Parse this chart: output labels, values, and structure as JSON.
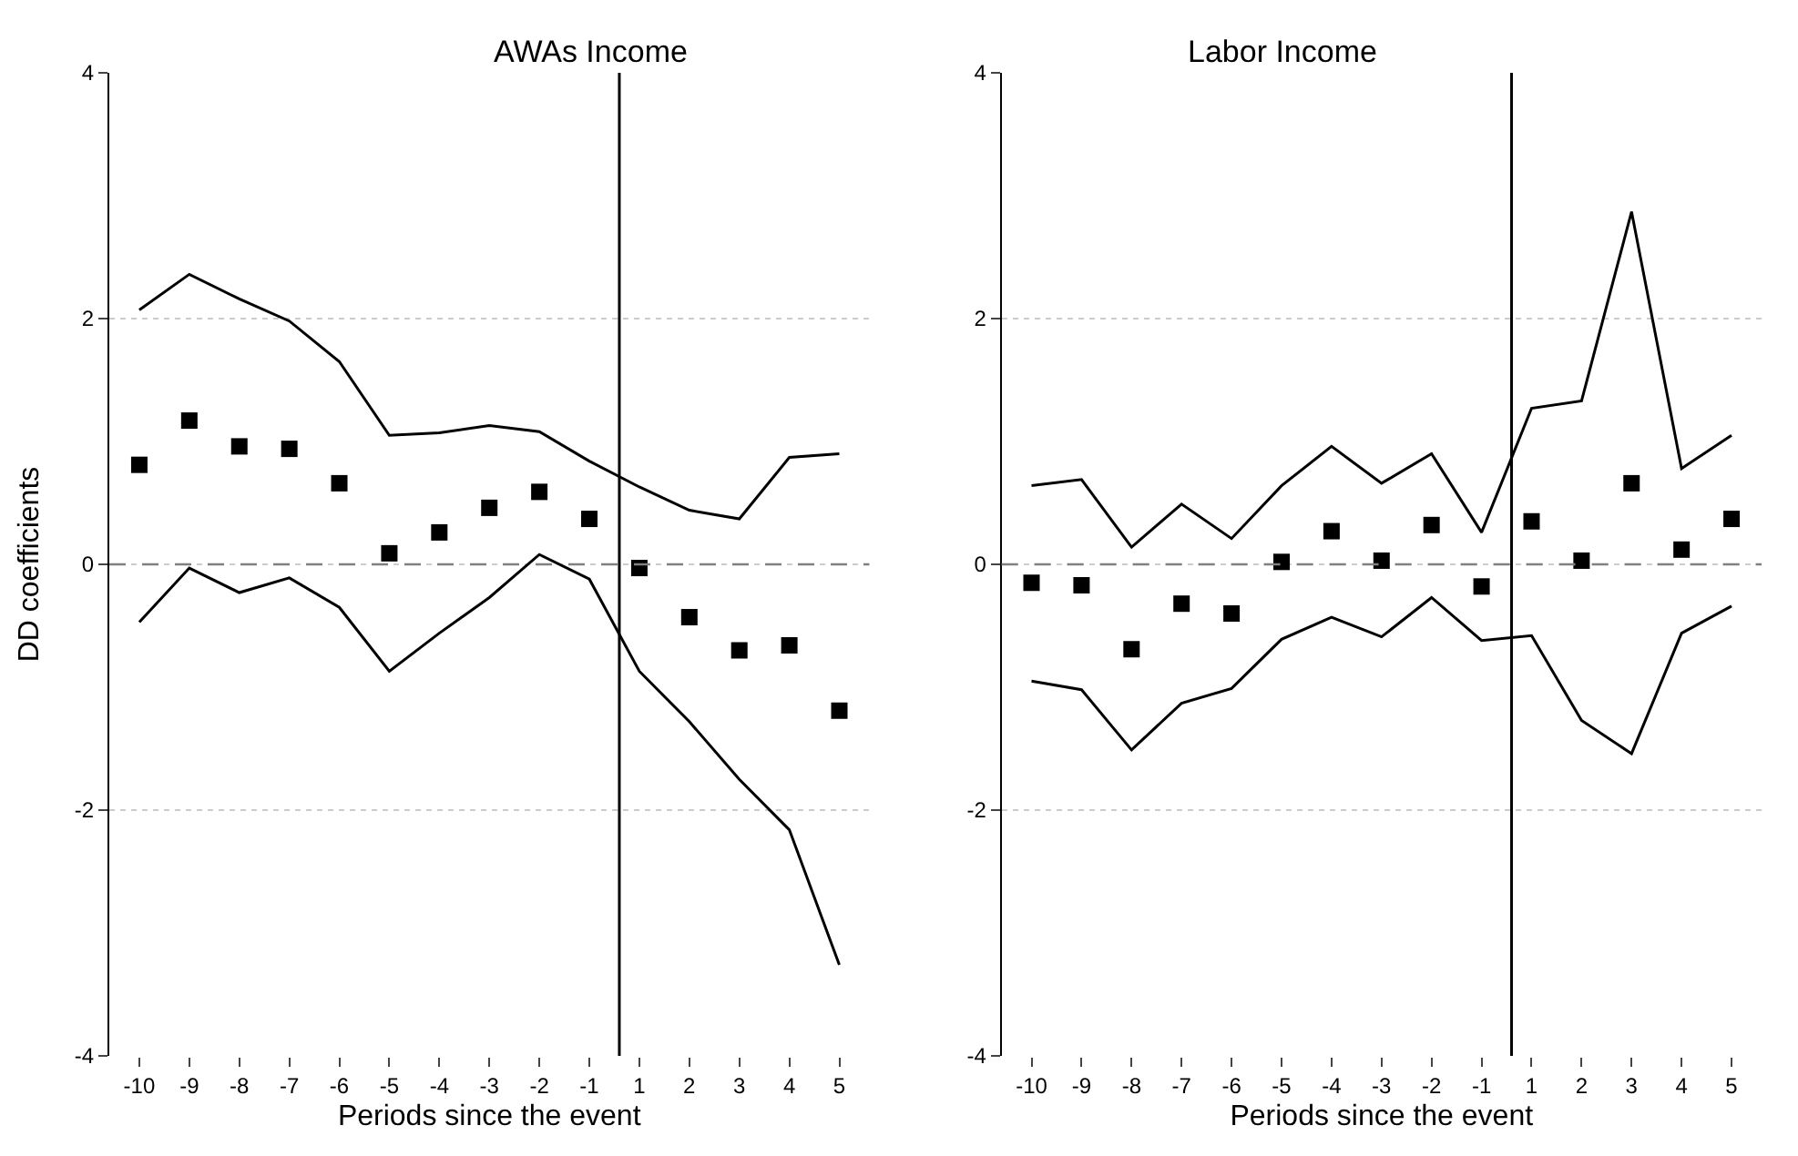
{
  "chart_data": [
    {
      "type": "scatter",
      "title": "AWAs Income",
      "xlabel": "Periods since the event",
      "ylabel": "DD coefficients",
      "categories": [
        "-10",
        "-9",
        "-8",
        "-7",
        "-6",
        "-5",
        "-4",
        "-3",
        "-2",
        "-1",
        "1",
        "2",
        "3",
        "4",
        "5"
      ],
      "ylim": [
        -4,
        4
      ],
      "yticks": [
        -4,
        -2,
        0,
        2,
        4
      ],
      "grid": "y",
      "series": [
        {
          "marker": "square",
          "color": "#000000",
          "values": [
            0.81,
            1.17,
            0.96,
            0.94,
            0.66,
            0.09,
            0.26,
            0.46,
            0.59,
            0.37,
            -0.03,
            -0.43,
            -0.7,
            -0.66,
            -1.19
          ]
        },
        {
          "type": "line",
          "marker": "none",
          "line_style": "solid",
          "color": "#000000",
          "values": [
            2.07,
            2.36,
            2.16,
            1.98,
            1.65,
            1.05,
            1.07,
            1.13,
            1.08,
            0.84,
            0.63,
            0.44,
            0.37,
            0.87,
            0.9
          ]
        },
        {
          "type": "line",
          "marker": "none",
          "line_style": "solid",
          "color": "#000000",
          "values": [
            -0.47,
            -0.03,
            -0.23,
            -0.11,
            -0.35,
            -0.87,
            -0.56,
            -0.27,
            0.08,
            -0.12,
            -0.87,
            -1.28,
            -1.75,
            -2.16,
            -3.26
          ]
        }
      ],
      "ref_lines": [
        {
          "axis": "y",
          "value": 0,
          "color": "#808080",
          "line_style": "dashed"
        },
        {
          "axis": "x",
          "value": "1",
          "color": "#000000",
          "line_style": "solid"
        }
      ]
    },
    {
      "type": "scatter",
      "title": "Labor Income",
      "xlabel": "Periods since the event",
      "categories": [
        "-10",
        "-9",
        "-8",
        "-7",
        "-6",
        "-5",
        "-4",
        "-3",
        "-2",
        "-1",
        "1",
        "2",
        "3",
        "4",
        "5"
      ],
      "ylim": [
        -4,
        4
      ],
      "yticks": [
        -4,
        -2,
        0,
        2,
        4
      ],
      "grid": "y",
      "series": [
        {
          "marker": "square",
          "color": "#000000",
          "values": [
            -0.15,
            -0.17,
            -0.69,
            -0.32,
            -0.4,
            0.02,
            0.27,
            0.03,
            0.32,
            -0.18,
            0.35,
            0.03,
            0.66,
            0.12,
            0.37
          ]
        },
        {
          "type": "line",
          "marker": "none",
          "line_style": "solid",
          "color": "#000000",
          "values": [
            0.64,
            0.69,
            0.14,
            0.49,
            0.21,
            0.64,
            0.96,
            0.66,
            0.9,
            0.26,
            1.27,
            1.33,
            2.87,
            0.78,
            1.05
          ]
        },
        {
          "type": "line",
          "marker": "none",
          "line_style": "solid",
          "color": "#000000",
          "values": [
            -0.95,
            -1.02,
            -1.51,
            -1.13,
            -1.01,
            -0.61,
            -0.43,
            -0.59,
            -0.27,
            -0.62,
            -0.58,
            -1.27,
            -1.54,
            -0.56,
            -0.34
          ]
        }
      ],
      "ref_lines": [
        {
          "axis": "y",
          "value": 0,
          "color": "#808080",
          "line_style": "dashed"
        },
        {
          "axis": "x",
          "value": "1",
          "color": "#000000",
          "line_style": "solid"
        }
      ]
    }
  ]
}
